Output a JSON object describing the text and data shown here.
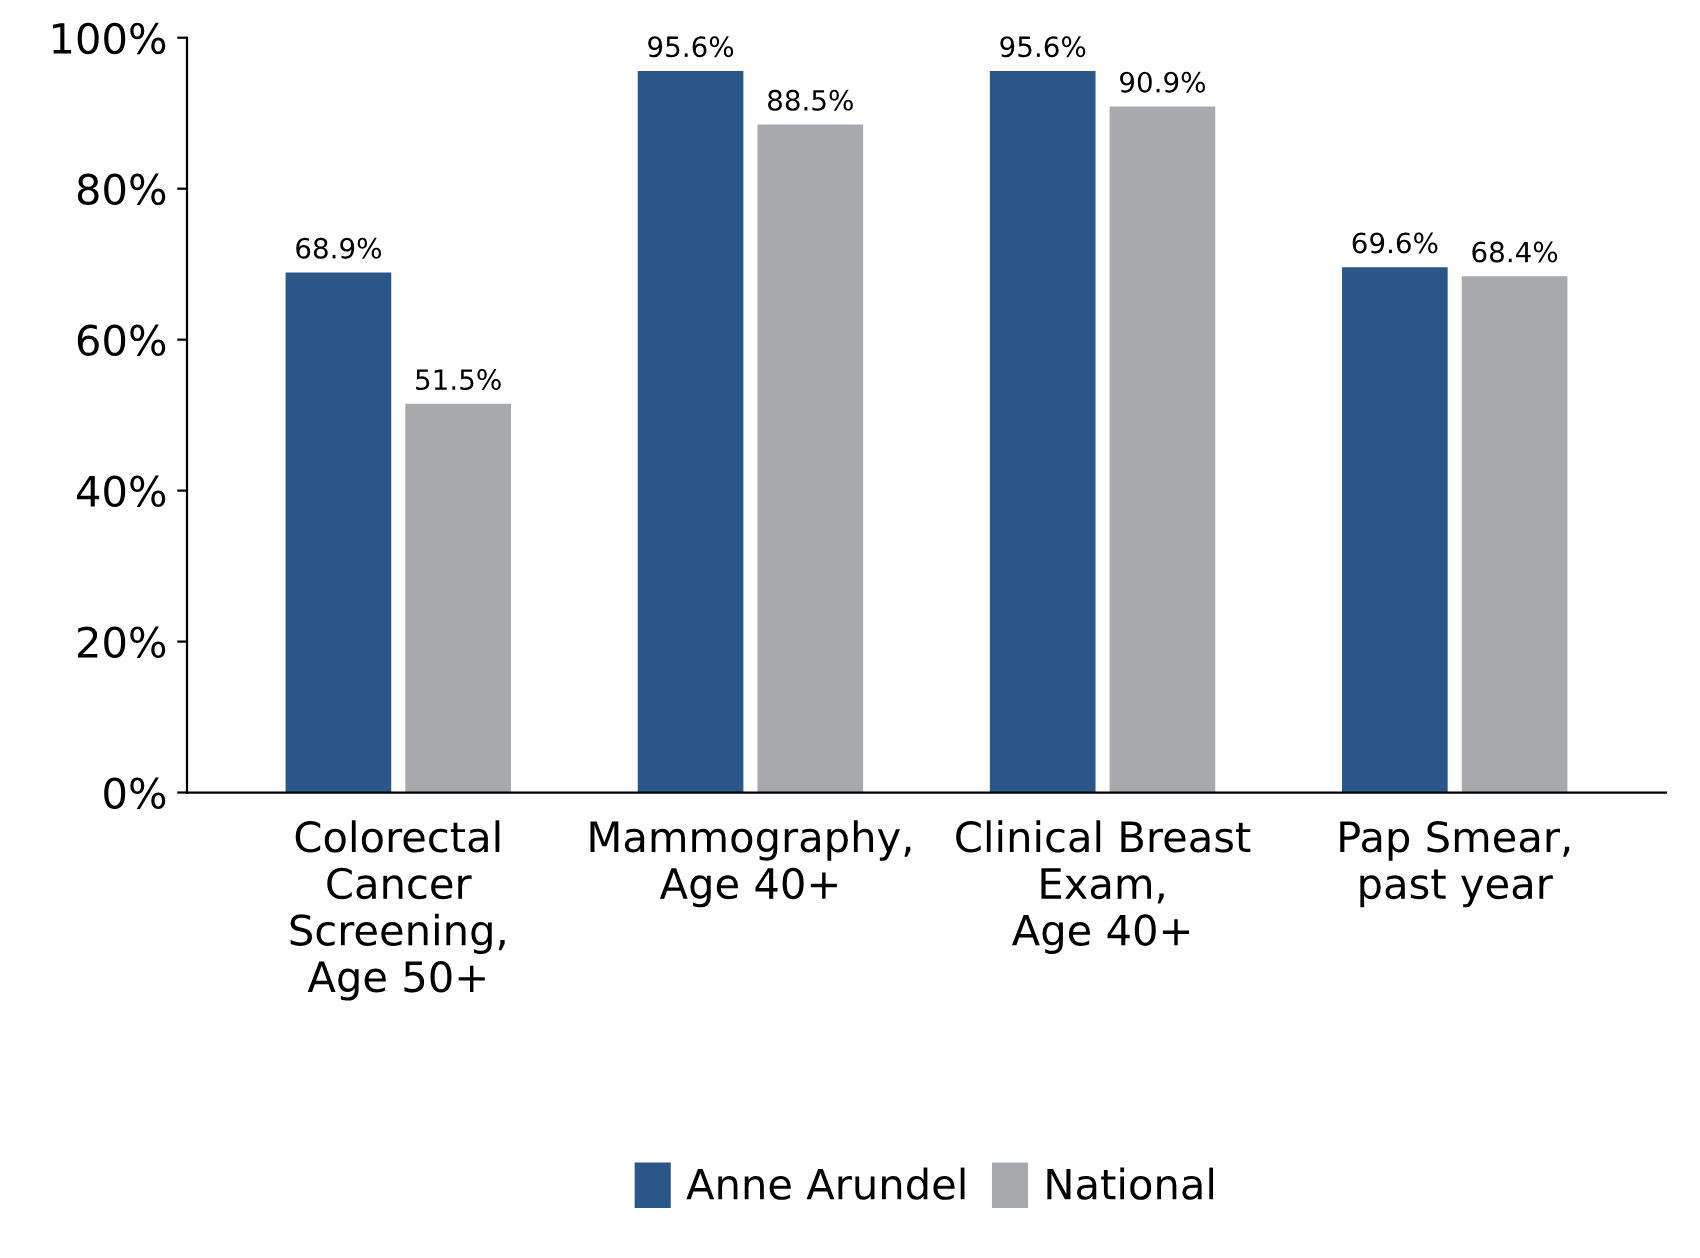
{
  "chart_data": {
    "type": "bar",
    "categories": [
      "Colorectal\nCancer\nScreening,\nAge 50+",
      "Mammography,\nAge 40+",
      "Clinical Breast\nExam,\nAge 40+",
      "Pap Smear,\npast year"
    ],
    "series": [
      {
        "name": "Anne Arundel",
        "color": "#2b5689",
        "values": [
          68.9,
          95.6,
          95.6,
          69.6
        ],
        "value_labels": [
          "68.9%",
          "95.6%",
          "95.6%",
          "69.6%"
        ]
      },
      {
        "name": "National",
        "color": "#a7a9ac",
        "values": [
          51.5,
          88.5,
          90.9,
          68.4
        ],
        "value_labels": [
          "51.5%",
          "88.5%",
          "90.9%",
          "68.4%"
        ]
      }
    ],
    "ylim": [
      0,
      100
    ],
    "yticks": [
      {
        "value": 0,
        "label": "0%"
      },
      {
        "value": 20,
        "label": "20%"
      },
      {
        "value": 40,
        "label": "40%"
      },
      {
        "value": 60,
        "label": "60%"
      },
      {
        "value": 80,
        "label": "80%"
      },
      {
        "value": 100,
        "label": "100%"
      }
    ],
    "grid": false,
    "legend": "bottom"
  }
}
